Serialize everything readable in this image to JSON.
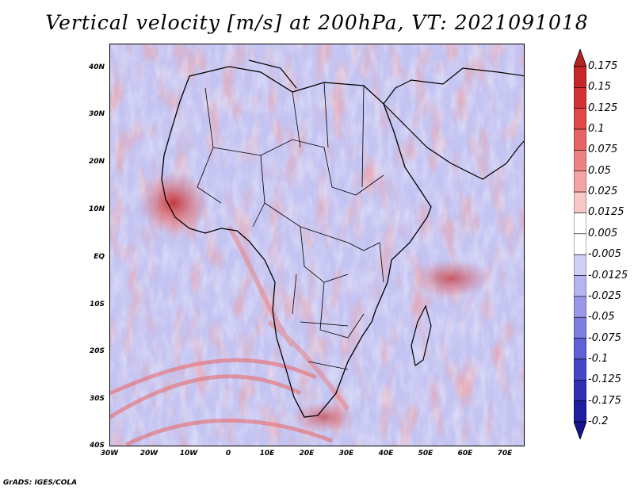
{
  "title": "Vertical velocity [m/s] at 200hPa, VT: 2021091018",
  "map": {
    "lat_labels": [
      "40N",
      "30N",
      "20N",
      "10N",
      "EQ",
      "10S",
      "20S",
      "30S",
      "40S"
    ],
    "lon_labels": [
      "30W",
      "20W",
      "10W",
      "0",
      "10E",
      "20E",
      "30E",
      "40E",
      "50E",
      "60E",
      "70E"
    ],
    "lat_range": [
      -40,
      45
    ],
    "lon_range": [
      -30,
      75
    ]
  },
  "colorbar": {
    "levels": [
      "0.175",
      "0.15",
      "0.125",
      "0.1",
      "0.075",
      "0.05",
      "0.025",
      "0.0125",
      "0.005",
      "-0.005",
      "-0.0125",
      "-0.025",
      "-0.05",
      "-0.075",
      "-0.1",
      "-0.125",
      "-0.175",
      "-0.2"
    ],
    "colors": [
      "#b22222",
      "#c42828",
      "#d23434",
      "#e04848",
      "#e86464",
      "#ee8282",
      "#f4a4a4",
      "#f8c8c8",
      "#ffffff",
      "#ffffff",
      "#d0d0f6",
      "#b4b4f0",
      "#9898ea",
      "#7c7ce2",
      "#6060d8",
      "#4646c8",
      "#3030b4",
      "#1e1ea0",
      "#14148c"
    ]
  },
  "footer": "GrADS: IGES/COLA"
}
